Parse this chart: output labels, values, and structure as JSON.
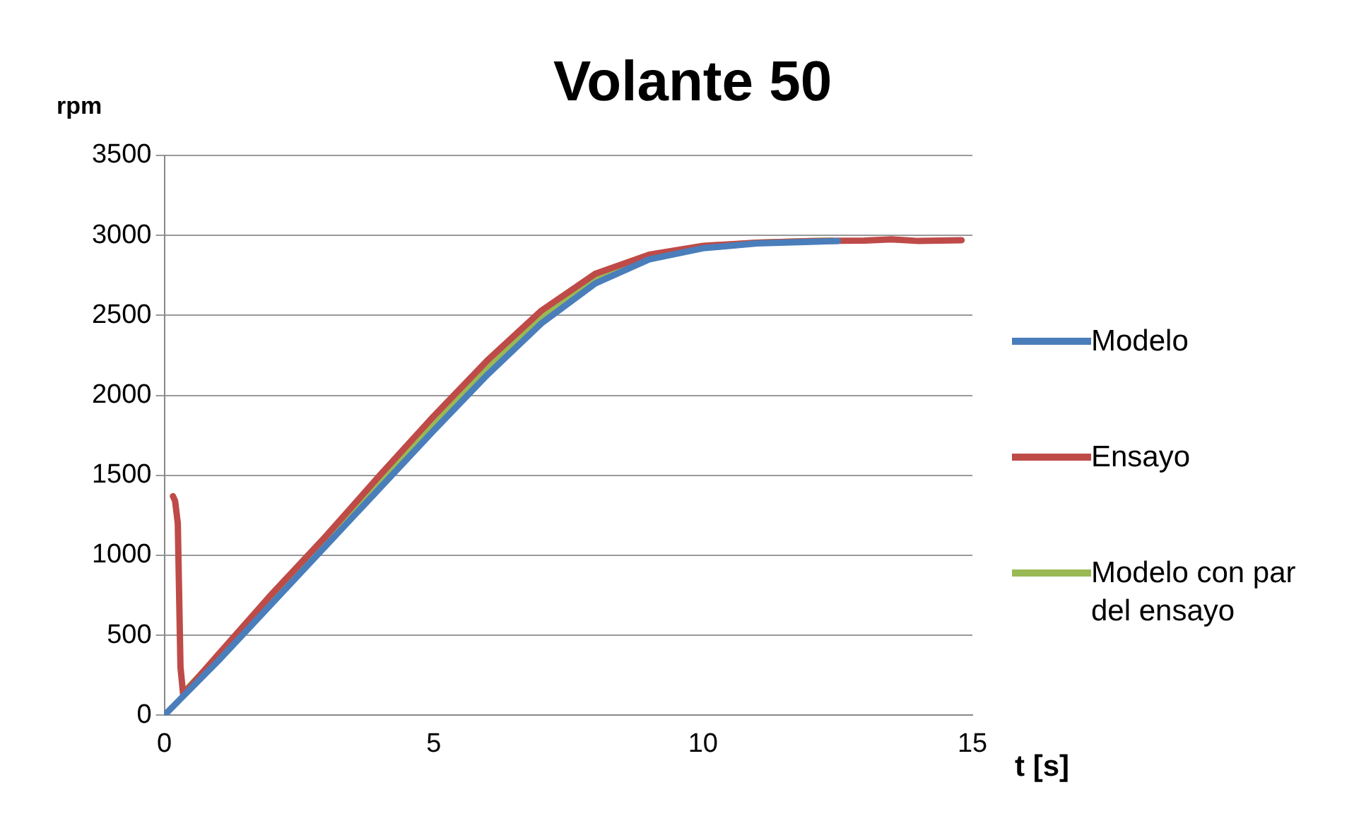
{
  "chart_data": {
    "type": "line",
    "title": "Volante 50",
    "xlabel": "t [s]",
    "ylabel": "rpm",
    "xlim": [
      0,
      15
    ],
    "xticks": [
      0,
      5,
      10,
      15
    ],
    "ylim": [
      0,
      3500
    ],
    "yticks": [
      0,
      500,
      1000,
      1500,
      2000,
      2500,
      3000,
      3500
    ],
    "grid": "y",
    "legend": "right",
    "marker": "none",
    "line_style": "solid",
    "series": [
      {
        "name": "Modelo",
        "color": "#4a7ebb",
        "x": [
          0,
          1,
          2,
          3,
          4,
          5,
          6,
          7,
          8,
          9,
          10,
          11,
          12,
          12.5
        ],
        "values": [
          0,
          340,
          700,
          1060,
          1420,
          1780,
          2130,
          2450,
          2700,
          2850,
          2920,
          2950,
          2960,
          2965
        ]
      },
      {
        "name": "Ensayo",
        "color": "#be4b48",
        "x": [
          0.16,
          0.2,
          0.25,
          0.3,
          0.35,
          1,
          2,
          3,
          4,
          5,
          6,
          7,
          8,
          9,
          10,
          11,
          12,
          13,
          13.5,
          14,
          14.8
        ],
        "values": [
          1370,
          1340,
          1200,
          300,
          130,
          380,
          760,
          1120,
          1500,
          1870,
          2220,
          2530,
          2760,
          2880,
          2935,
          2955,
          2965,
          2968,
          2975,
          2965,
          2970
        ]
      },
      {
        "name": "Modelo con par del ensayo",
        "color": "#98b954",
        "x": [
          0.35,
          1,
          2,
          3,
          4,
          5,
          6,
          7,
          8,
          9,
          10,
          11,
          12,
          12.4
        ],
        "values": [
          140,
          370,
          740,
          1100,
          1470,
          1830,
          2180,
          2490,
          2730,
          2870,
          2930,
          2955,
          2965,
          2968
        ]
      }
    ]
  }
}
